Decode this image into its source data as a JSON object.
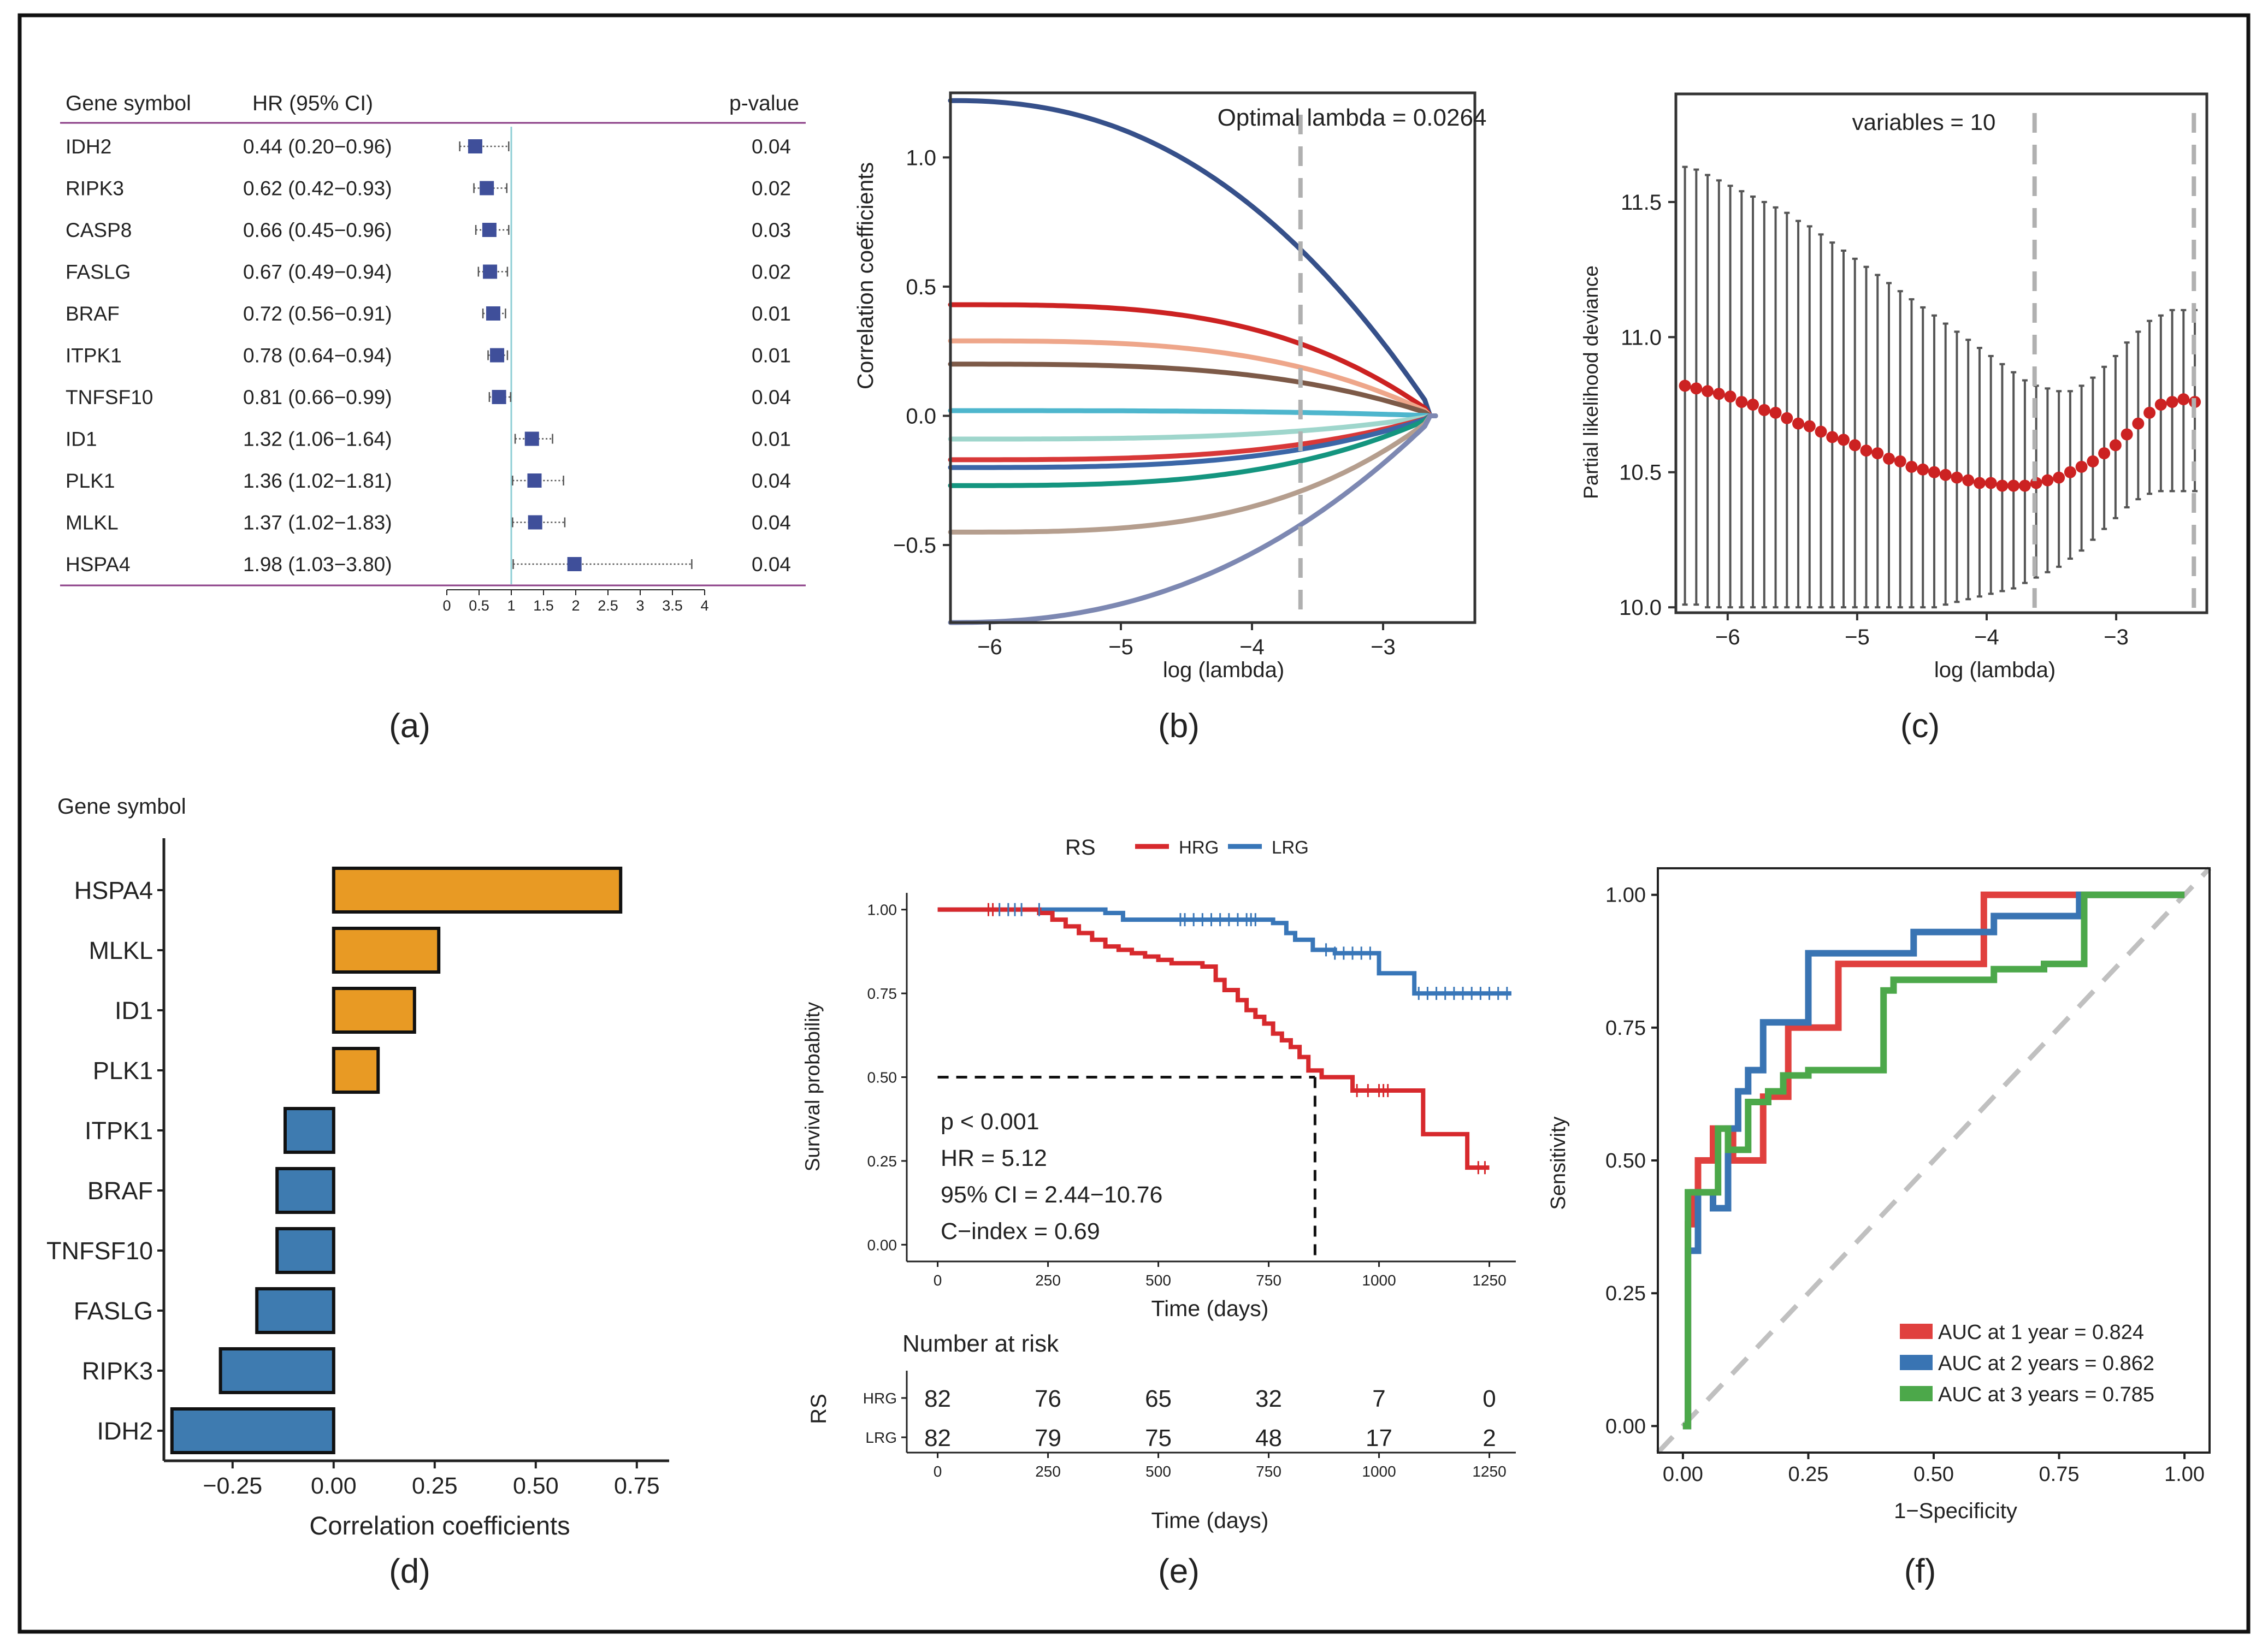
{
  "colors": {
    "frame": "#111111",
    "forest_header_line": "#8a3c86",
    "forest_marker": "#3f4f9a",
    "forest_ref_line": "#8fcfd6",
    "bar_positive": "#e89a24",
    "bar_negative": "#3e7bb0",
    "hrg": "#d7292d",
    "lrg": "#3876b8",
    "auc1": "#e0403e",
    "auc2": "#3974b3",
    "auc3": "#4ca84a",
    "cv_point": "#cc2222",
    "cv_bar": "#555555",
    "dashed_ref": "#b0b0b0"
  },
  "chart_data": [
    {
      "id": "a",
      "panel_label": "(a)",
      "type": "forest",
      "columns": {
        "gene": "Gene symbol",
        "hr": "HR (95% CI)",
        "p": "p-value"
      },
      "rows": [
        {
          "gene": "IDH2",
          "hr_text": "0.44 (0.20−0.96)",
          "hr": 0.44,
          "lo": 0.2,
          "hi": 0.96,
          "p": "0.04"
        },
        {
          "gene": "RIPK3",
          "hr_text": "0.62 (0.42−0.93)",
          "hr": 0.62,
          "lo": 0.42,
          "hi": 0.93,
          "p": "0.02"
        },
        {
          "gene": "CASP8",
          "hr_text": "0.66 (0.45−0.96)",
          "hr": 0.66,
          "lo": 0.45,
          "hi": 0.96,
          "p": "0.03"
        },
        {
          "gene": "FASLG",
          "hr_text": "0.67 (0.49−0.94)",
          "hr": 0.67,
          "lo": 0.49,
          "hi": 0.94,
          "p": "0.02"
        },
        {
          "gene": "BRAF",
          "hr_text": "0.72 (0.56−0.91)",
          "hr": 0.72,
          "lo": 0.56,
          "hi": 0.91,
          "p": "0.01"
        },
        {
          "gene": "ITPK1",
          "hr_text": "0.78 (0.64−0.94)",
          "hr": 0.78,
          "lo": 0.64,
          "hi": 0.94,
          "p": "0.01"
        },
        {
          "gene": "TNFSF10",
          "hr_text": "0.81 (0.66−0.99)",
          "hr": 0.81,
          "lo": 0.66,
          "hi": 0.99,
          "p": "0.04"
        },
        {
          "gene": "ID1",
          "hr_text": "1.32 (1.06−1.64)",
          "hr": 1.32,
          "lo": 1.06,
          "hi": 1.64,
          "p": "0.01"
        },
        {
          "gene": "PLK1",
          "hr_text": "1.36 (1.02−1.81)",
          "hr": 1.36,
          "lo": 1.02,
          "hi": 1.81,
          "p": "0.04"
        },
        {
          "gene": "MLKL",
          "hr_text": "1.37 (1.02−1.83)",
          "hr": 1.37,
          "lo": 1.02,
          "hi": 1.83,
          "p": "0.04"
        },
        {
          "gene": "HSPA4",
          "hr_text": "1.98 (1.03−3.80)",
          "hr": 1.98,
          "lo": 1.03,
          "hi": 3.8,
          "p": "0.04"
        }
      ],
      "xlim": [
        0,
        4
      ],
      "ref": 1,
      "ticks": [
        "0",
        "0.5",
        "1",
        "1.5",
        "2",
        "2.5",
        "3",
        "3.5",
        "4"
      ]
    },
    {
      "id": "b",
      "panel_label": "(b)",
      "type": "line",
      "title": "Optimal lambda = 0.0264",
      "xlabel": "log (lambda)",
      "ylabel": "Correlation coefficients",
      "xlim": [
        -6.3,
        -2.3
      ],
      "ylim": [
        -0.8,
        1.25
      ],
      "xticks": [
        -6,
        -5,
        -4,
        -3
      ],
      "xtick_labels": [
        "−6",
        "−5",
        "−4",
        "−3"
      ],
      "yticks": [
        -0.5,
        0.0,
        0.5,
        1.0
      ],
      "ytick_labels": [
        "−0.5",
        "0.0",
        "0.5",
        "1.0"
      ],
      "vline": -3.63,
      "series": [
        {
          "start": 1.22,
          "shape": "exp",
          "color": "#36508a"
        },
        {
          "start": 0.43,
          "shape": "flat",
          "color": "#cc2222"
        },
        {
          "start": 0.29,
          "shape": "flat",
          "color": "#eea68a"
        },
        {
          "start": 0.2,
          "shape": "flat",
          "color": "#7d5a48"
        },
        {
          "start": 0.02,
          "shape": "flat",
          "color": "#4eb6cd"
        },
        {
          "start": -0.09,
          "shape": "flat",
          "color": "#9fd6cc"
        },
        {
          "start": -0.17,
          "shape": "flat",
          "color": "#d83838"
        },
        {
          "start": -0.2,
          "shape": "flat",
          "color": "#3b66a7"
        },
        {
          "start": -0.27,
          "shape": "flat",
          "color": "#14957f"
        },
        {
          "start": -0.45,
          "shape": "flat",
          "color": "#b59e8e"
        },
        {
          "start": -0.8,
          "shape": "exp",
          "color": "#7d88b2"
        }
      ]
    },
    {
      "id": "c",
      "panel_label": "(c)",
      "type": "scatter",
      "title": "variables = 10",
      "xlabel": "log (lambda)",
      "ylabel": "Partial likelihood deviance",
      "xlim": [
        -6.4,
        -2.3
      ],
      "ylim": [
        9.98,
        11.9
      ],
      "xticks": [
        -6,
        -5,
        -4,
        -3
      ],
      "xtick_labels": [
        "−6",
        "−5",
        "−4",
        "−3"
      ],
      "yticks": [
        10.0,
        10.5,
        11.0,
        11.5
      ],
      "ytick_labels": [
        "10.0",
        "10.5",
        "11.0",
        "11.5"
      ],
      "vlines": [
        -3.63,
        -2.4
      ],
      "x_start": -6.33,
      "x_step": 0.0875,
      "means": [
        10.82,
        10.81,
        10.8,
        10.79,
        10.78,
        10.76,
        10.75,
        10.73,
        10.72,
        10.7,
        10.68,
        10.67,
        10.65,
        10.63,
        10.62,
        10.6,
        10.58,
        10.57,
        10.55,
        10.54,
        10.52,
        10.51,
        10.5,
        10.49,
        10.48,
        10.47,
        10.46,
        10.46,
        10.45,
        10.45,
        10.45,
        10.46,
        10.47,
        10.48,
        10.5,
        10.52,
        10.54,
        10.57,
        10.6,
        10.64,
        10.68,
        10.72,
        10.75,
        10.76,
        10.77,
        10.76
      ],
      "upper": [
        11.63,
        11.62,
        11.6,
        11.58,
        11.56,
        11.54,
        11.52,
        11.5,
        11.48,
        11.46,
        11.43,
        11.41,
        11.38,
        11.35,
        11.32,
        11.29,
        11.26,
        11.23,
        11.2,
        11.17,
        11.14,
        11.11,
        11.08,
        11.05,
        11.02,
        10.99,
        10.96,
        10.93,
        10.9,
        10.87,
        10.84,
        10.82,
        10.81,
        10.8,
        10.8,
        10.82,
        10.85,
        10.89,
        10.93,
        10.98,
        11.02,
        11.06,
        11.08,
        11.1,
        11.1,
        11.1
      ],
      "lower": [
        10.01,
        10.01,
        10.0,
        10.0,
        10.0,
        10.0,
        10.0,
        10.0,
        10.0,
        10.0,
        10.0,
        10.0,
        10.0,
        10.0,
        10.0,
        10.0,
        10.0,
        10.0,
        10.0,
        10.0,
        10.0,
        10.0,
        10.0,
        10.01,
        10.02,
        10.03,
        10.04,
        10.05,
        10.06,
        10.07,
        10.09,
        10.11,
        10.13,
        10.15,
        10.18,
        10.21,
        10.25,
        10.29,
        10.33,
        10.37,
        10.4,
        10.42,
        10.43,
        10.43,
        10.43,
        10.43
      ]
    },
    {
      "id": "d",
      "panel_label": "(d)",
      "type": "bar",
      "orientation": "horizontal",
      "title": "Gene symbol",
      "xlabel": "Correlation coefficients",
      "categories": [
        "HSPA4",
        "MLKL",
        "ID1",
        "PLK1",
        "ITPK1",
        "BRAF",
        "TNFSF10",
        "FASLG",
        "RIPK3",
        "IDH2"
      ],
      "values": [
        0.71,
        0.26,
        0.2,
        0.11,
        -0.12,
        -0.14,
        -0.14,
        -0.19,
        -0.28,
        -0.4
      ],
      "xlim": [
        -0.42,
        0.83
      ],
      "xticks": [
        -0.25,
        0.0,
        0.25,
        0.5,
        0.75
      ],
      "xtick_labels": [
        "−0.25",
        "0.00",
        "0.25",
        "0.50",
        "0.75"
      ]
    },
    {
      "id": "e",
      "panel_label": "(e)",
      "type": "line",
      "subtype": "kaplan-meier",
      "legend_title": "RS",
      "legend": [
        "HRG",
        "LRG"
      ],
      "xlabel": "Time (days)",
      "ylabel": "Survival probability",
      "xlim": [
        -70,
        1310
      ],
      "ylim": [
        -0.05,
        1.05
      ],
      "xticks": [
        0,
        250,
        500,
        750,
        1000,
        1250
      ],
      "xtick_labels": [
        "0",
        "250",
        "500",
        "750",
        "1000",
        "1250"
      ],
      "yticks": [
        0,
        0.25,
        0.5,
        0.75,
        1.0
      ],
      "ytick_labels": [
        "0.00",
        "0.25",
        "0.50",
        "0.75",
        "1.00"
      ],
      "median_time": 855,
      "annotations": [
        "p < 0.001",
        "HR = 5.12",
        "95% CI = 2.44−10.76",
        "C−index = 0.69"
      ],
      "series": [
        {
          "name": "HRG",
          "x": [
            0,
            150,
            230,
            260,
            290,
            320,
            350,
            380,
            410,
            440,
            470,
            500,
            530,
            560,
            600,
            630,
            650,
            680,
            700,
            720,
            740,
            760,
            780,
            800,
            820,
            840,
            870,
            900,
            940,
            980,
            1000,
            1050,
            1100,
            1170,
            1200,
            1250
          ],
          "y": [
            1.0,
            1.0,
            0.99,
            0.97,
            0.95,
            0.93,
            0.91,
            0.89,
            0.88,
            0.87,
            0.86,
            0.85,
            0.84,
            0.84,
            0.83,
            0.79,
            0.76,
            0.73,
            0.7,
            0.68,
            0.66,
            0.63,
            0.61,
            0.59,
            0.56,
            0.52,
            0.5,
            0.5,
            0.46,
            0.46,
            0.46,
            0.46,
            0.33,
            0.33,
            0.23,
            0.23
          ]
        },
        {
          "name": "LRG",
          "x": [
            0,
            350,
            380,
            420,
            500,
            600,
            700,
            760,
            790,
            810,
            850,
            900,
            970,
            1000,
            1080,
            1300
          ],
          "y": [
            1.0,
            1.0,
            0.99,
            0.97,
            0.97,
            0.97,
            0.97,
            0.96,
            0.93,
            0.91,
            0.88,
            0.87,
            0.87,
            0.81,
            0.75,
            0.75
          ]
        }
      ],
      "hrg_censors": [
        115,
        125,
        950,
        975,
        1000,
        1010,
        1020,
        1225,
        1240
      ],
      "lrg_censors": [
        140,
        160,
        175,
        190,
        230,
        550,
        560,
        580,
        600,
        620,
        640,
        660,
        680,
        700,
        710,
        720,
        880,
        900,
        920,
        940,
        960,
        980,
        1090,
        1110,
        1130,
        1150,
        1170,
        1190,
        1210,
        1230,
        1250,
        1270,
        1290
      ],
      "risk_table": {
        "title": "Number at risk",
        "ylabel": "RS",
        "xlabel": "Time (days)",
        "rows": [
          {
            "name": "HRG",
            "values": [
              "82",
              "76",
              "65",
              "32",
              "7",
              "0"
            ]
          },
          {
            "name": "LRG",
            "values": [
              "82",
              "79",
              "75",
              "48",
              "17",
              "2"
            ]
          }
        ]
      }
    },
    {
      "id": "f",
      "panel_label": "(f)",
      "type": "line",
      "subtype": "roc",
      "xlabel": "1−Specificity",
      "ylabel": "Sensitivity",
      "xlim": [
        -0.05,
        1.05
      ],
      "ylim": [
        -0.05,
        1.05
      ],
      "xticks": [
        0,
        0.25,
        0.5,
        0.75,
        1.0
      ],
      "xtick_labels": [
        "0.00",
        "0.25",
        "0.50",
        "0.75",
        "1.00"
      ],
      "yticks": [
        0,
        0.25,
        0.5,
        0.75,
        1.0
      ],
      "ytick_labels": [
        "0.00",
        "0.25",
        "0.50",
        "0.75",
        "1.00"
      ],
      "series": [
        {
          "name": "AUC at 1 year = 0.824",
          "x": [
            0,
            0.01,
            0.01,
            0.02,
            0.02,
            0.03,
            0.03,
            0.06,
            0.06,
            0.1,
            0.1,
            0.16,
            0.16,
            0.21,
            0.21,
            0.24,
            0.24,
            0.31,
            0.31,
            0.4,
            0.4,
            0.6,
            0.6,
            1.0
          ],
          "y": [
            0,
            0,
            0.38,
            0.38,
            0.44,
            0.44,
            0.5,
            0.5,
            0.56,
            0.56,
            0.5,
            0.5,
            0.62,
            0.62,
            0.75,
            0.75,
            0.75,
            0.75,
            0.87,
            0.87,
            0.87,
            0.87,
            1.0,
            1.0
          ]
        },
        {
          "name": "AUC at 2 years = 0.862",
          "x": [
            0,
            0.01,
            0.01,
            0.03,
            0.03,
            0.06,
            0.06,
            0.09,
            0.09,
            0.11,
            0.11,
            0.13,
            0.13,
            0.16,
            0.16,
            0.2,
            0.2,
            0.25,
            0.25,
            0.46,
            0.46,
            0.62,
            0.62,
            0.79,
            0.79,
            1.0
          ],
          "y": [
            0,
            0,
            0.33,
            0.33,
            0.44,
            0.44,
            0.41,
            0.41,
            0.56,
            0.56,
            0.63,
            0.63,
            0.67,
            0.67,
            0.76,
            0.76,
            0.76,
            0.76,
            0.89,
            0.89,
            0.93,
            0.93,
            0.96,
            0.96,
            1.0,
            1.0
          ]
        },
        {
          "name": "AUC at 3 years = 0.785",
          "x": [
            0,
            0.01,
            0.01,
            0.07,
            0.07,
            0.09,
            0.09,
            0.13,
            0.13,
            0.17,
            0.17,
            0.2,
            0.2,
            0.25,
            0.25,
            0.4,
            0.4,
            0.42,
            0.42,
            0.62,
            0.62,
            0.72,
            0.72,
            0.8,
            0.8,
            1.0
          ],
          "y": [
            0,
            0,
            0.44,
            0.44,
            0.56,
            0.56,
            0.52,
            0.52,
            0.61,
            0.61,
            0.63,
            0.63,
            0.66,
            0.66,
            0.67,
            0.67,
            0.82,
            0.82,
            0.84,
            0.84,
            0.86,
            0.86,
            0.87,
            0.87,
            1.0,
            1.0
          ]
        }
      ]
    }
  ]
}
